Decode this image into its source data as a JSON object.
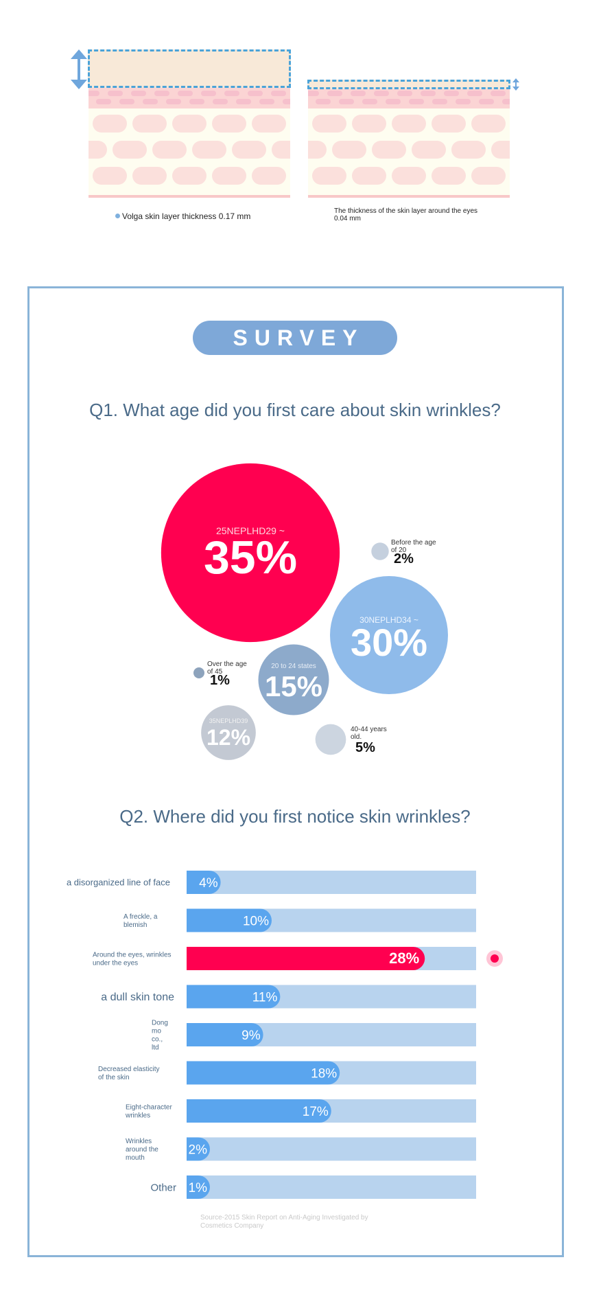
{
  "illustration": {
    "left_caption": "Volga skin layer thickness 0.17 mm",
    "right_caption": "The thickness of the skin layer around the eyes 0.04 mm",
    "colors": {
      "dashed": "#4aa3d9",
      "arrow": "#6fa6dc",
      "fat_top": "#f8e9d8"
    }
  },
  "survey": {
    "badge": "SURVEY",
    "q1_title": "Q1. What age did you first care about skin wrinkles?",
    "q2_title": "Q2. Where did you first notice skin wrinkles?",
    "source": "Source-2015 Skin Report on Anti-Aging Investigated by Cosmetics Company"
  },
  "chart_data": [
    {
      "type": "bubble",
      "title": "Q1. What age did you first care about skin wrinkles?",
      "items": [
        {
          "label": "25NEPLHD29 ~",
          "value": 35,
          "value_label": "35%",
          "color": "#ff0050",
          "label_inside": true
        },
        {
          "label": "30NEPLHD34 ~",
          "value": 30,
          "value_label": "30%",
          "color": "#8fbbea",
          "label_inside": true
        },
        {
          "label": "20 to 24 states",
          "value": 15,
          "value_label": "15%",
          "color": "#8daacb",
          "label_inside": true
        },
        {
          "label": "35NEPLHD39",
          "value": 12,
          "value_label": "12%",
          "color": "#c3c9d3",
          "label_inside": true
        },
        {
          "label": "40-44 years old.",
          "value": 5,
          "value_label": "5%",
          "color": "#ccd5e0",
          "label_inside": false
        },
        {
          "label": "Before the age of 20",
          "value": 2,
          "value_label": "2%",
          "color": "#c5d0de",
          "label_inside": false
        },
        {
          "label": "Over the age of 45",
          "value": 1,
          "value_label": "1%",
          "color": "#8da3bc",
          "label_inside": false
        }
      ]
    },
    {
      "type": "bar",
      "orientation": "horizontal",
      "title": "Q2. Where did you first notice skin wrinkles?",
      "xlim": [
        0,
        30
      ],
      "categories": [
        "a disorganized line of face",
        "A freckle, a blemish",
        "Around the eyes, wrinkles under the eyes",
        "a dull skin tone",
        "Dong mo co., ltd",
        "Decreased elasticity of the skin",
        "Eight-character wrinkles",
        "Wrinkles around the mouth",
        "Other"
      ],
      "values": [
        4,
        10,
        28,
        11,
        9,
        18,
        17,
        2,
        1
      ],
      "value_labels": [
        "4%",
        "10%",
        "28%",
        "11%",
        "9%",
        "18%",
        "17%",
        "2%",
        "1%"
      ],
      "highlight_index": 2,
      "colors": {
        "bar": "#5aa5ee",
        "track": "#b8d3ee",
        "highlight": "#ff0050",
        "marker": "#ff5a8a"
      }
    }
  ]
}
